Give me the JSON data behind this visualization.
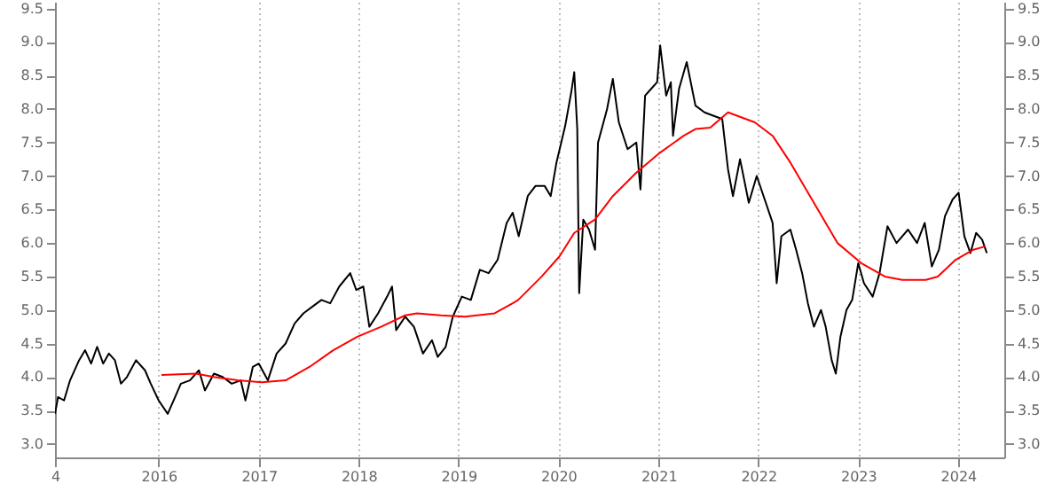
{
  "chart_data": {
    "type": "line",
    "grid": "x",
    "marker": "none",
    "line_style": "solid",
    "xlim": [
      "2014-12-18",
      "2024-06-18"
    ],
    "xticks": [
      {
        "value": "2014-12-18",
        "label": "4"
      },
      {
        "value": "2016-01-01",
        "label": "2016"
      },
      {
        "value": "2017-01-01",
        "label": "2017"
      },
      {
        "value": "2018-01-01",
        "label": "2018"
      },
      {
        "value": "2019-01-01",
        "label": "2019"
      },
      {
        "value": "2020-01-01",
        "label": "2020"
      },
      {
        "value": "2021-01-01",
        "label": "2021"
      },
      {
        "value": "2022-01-01",
        "label": "2022"
      },
      {
        "value": "2023-01-01",
        "label": "2023"
      },
      {
        "value": "2024-01-01",
        "label": "2024"
      }
    ],
    "ylim": [
      2.8,
      9.6
    ],
    "yticks": [
      {
        "value": 3,
        "label": "3.0"
      },
      {
        "value": 3.5,
        "label": "3.5"
      },
      {
        "value": 4,
        "label": "4.0"
      },
      {
        "value": 4.5,
        "label": "4.5"
      },
      {
        "value": 5,
        "label": "5.0"
      },
      {
        "value": 5.5,
        "label": "5.5"
      },
      {
        "value": 6,
        "label": "6.0"
      },
      {
        "value": 6.5,
        "label": "6.5"
      },
      {
        "value": 7,
        "label": "7.0"
      },
      {
        "value": 7.5,
        "label": "7.5"
      },
      {
        "value": 8,
        "label": "8.0"
      },
      {
        "value": 8.5,
        "label": "8.5"
      },
      {
        "value": 9,
        "label": "9.0"
      },
      {
        "value": 9.5,
        "label": "9.5"
      }
    ],
    "y2lim": [
      2.8,
      9.6
    ],
    "y2ticks": [
      {
        "value": 3,
        "label": "3.0"
      },
      {
        "value": 3.5,
        "label": "3.5"
      },
      {
        "value": 4,
        "label": "4.0"
      },
      {
        "value": 4.5,
        "label": "4.5"
      },
      {
        "value": 5,
        "label": "5.0"
      },
      {
        "value": 5.5,
        "label": "5.5"
      },
      {
        "value": 6,
        "label": "6.0"
      },
      {
        "value": 6.5,
        "label": "6.5"
      },
      {
        "value": 7,
        "label": "7.0"
      },
      {
        "value": 7.5,
        "label": "7.5"
      },
      {
        "value": 8,
        "label": "8.0"
      },
      {
        "value": 8.5,
        "label": "8.5"
      },
      {
        "value": 9,
        "label": "9.0"
      },
      {
        "value": 9.5,
        "label": "9.5"
      }
    ],
    "series": [
      {
        "color": "#000000",
        "x": [
          "2014-12-18",
          "2014-12-29",
          "2015-01-20",
          "2015-02-11",
          "2015-03-16",
          "2015-04-07",
          "2015-04-29",
          "2015-05-21",
          "2015-06-12",
          "2015-07-03",
          "2015-07-25",
          "2015-08-16",
          "2015-09-07",
          "2015-10-10",
          "2015-11-12",
          "2015-12-03",
          "2016-01-01",
          "2016-02-03",
          "2016-03-01",
          "2016-03-22",
          "2016-04-24",
          "2016-05-27",
          "2016-06-18",
          "2016-07-21",
          "2016-08-22",
          "2016-09-24",
          "2016-10-27",
          "2016-11-13",
          "2016-12-10",
          "2017-01-01",
          "2017-02-03",
          "2017-03-07",
          "2017-04-09",
          "2017-05-12",
          "2017-06-13",
          "2017-07-16",
          "2017-08-18",
          "2017-09-19",
          "2017-10-22",
          "2017-12-01",
          "2017-12-23",
          "2018-01-18",
          "2018-02-09",
          "2018-03-13",
          "2018-04-15",
          "2018-05-03",
          "2018-05-18",
          "2018-06-20",
          "2018-07-22",
          "2018-08-24",
          "2018-09-26",
          "2018-10-17",
          "2018-11-15",
          "2018-12-11",
          "2019-01-13",
          "2019-02-15",
          "2019-03-20",
          "2019-04-21",
          "2019-05-24",
          "2019-06-26",
          "2019-07-18",
          "2019-08-09",
          "2019-09-11",
          "2019-10-09",
          "2019-11-12",
          "2019-12-04",
          "2019-12-25",
          "2020-01-26",
          "2020-02-17",
          "2020-02-28",
          "2020-03-10",
          "2020-03-17",
          "2020-04-01",
          "2020-04-22",
          "2020-05-14",
          "2020-05-25",
          "2020-06-27",
          "2020-07-18",
          "2020-08-09",
          "2020-09-10",
          "2020-10-12",
          "2020-10-27",
          "2020-11-13",
          "2020-12-05",
          "2020-12-27",
          "2021-01-07",
          "2021-01-29",
          "2021-02-15",
          "2021-02-23",
          "2021-03-17",
          "2021-04-14",
          "2021-05-16",
          "2021-06-18",
          "2021-07-20",
          "2021-08-22",
          "2021-09-12",
          "2021-09-30",
          "2021-10-26",
          "2021-11-27",
          "2021-12-26",
          "2022-01-20",
          "2022-02-22",
          "2022-03-09",
          "2022-03-26",
          "2022-04-28",
          "2022-05-19",
          "2022-06-10",
          "2022-07-01",
          "2022-07-23",
          "2022-08-18",
          "2022-09-04",
          "2022-09-26",
          "2022-10-11",
          "2022-10-28",
          "2022-11-19",
          "2022-12-10",
          "2023-01-01",
          "2023-01-22",
          "2023-02-23",
          "2023-03-20",
          "2023-04-18",
          "2023-05-21",
          "2023-07-02",
          "2023-08-04",
          "2023-09-01",
          "2023-09-27",
          "2023-10-23",
          "2023-11-14",
          "2023-12-12",
          "2024-01-03",
          "2024-01-24",
          "2024-02-15",
          "2024-03-07",
          "2024-03-29",
          "2024-04-15"
        ],
        "values": [
          3.45,
          3.7,
          3.65,
          3.95,
          4.25,
          4.4,
          4.2,
          4.45,
          4.2,
          4.35,
          4.25,
          3.9,
          4.0,
          4.25,
          4.1,
          3.9,
          3.65,
          3.45,
          3.7,
          3.9,
          3.95,
          4.1,
          3.8,
          4.05,
          4.0,
          3.9,
          3.95,
          3.65,
          4.15,
          4.2,
          3.95,
          4.35,
          4.5,
          4.8,
          4.95,
          5.05,
          5.15,
          5.1,
          5.35,
          5.55,
          5.3,
          5.35,
          4.75,
          4.95,
          5.2,
          5.35,
          4.7,
          4.9,
          4.75,
          4.35,
          4.55,
          4.3,
          4.45,
          4.9,
          5.2,
          5.15,
          5.6,
          5.55,
          5.75,
          6.3,
          6.45,
          6.1,
          6.7,
          6.85,
          6.85,
          6.7,
          7.2,
          7.75,
          8.25,
          8.55,
          7.7,
          5.25,
          6.35,
          6.2,
          5.9,
          7.5,
          8.0,
          8.45,
          7.8,
          7.4,
          7.5,
          6.8,
          8.2,
          8.3,
          8.4,
          8.95,
          8.2,
          8.4,
          7.6,
          8.3,
          8.7,
          8.05,
          7.95,
          7.9,
          7.85,
          7.1,
          6.7,
          7.25,
          6.6,
          7.0,
          6.7,
          6.3,
          5.4,
          6.1,
          6.2,
          5.9,
          5.55,
          5.1,
          4.75,
          5.0,
          4.75,
          4.25,
          4.05,
          4.6,
          5.0,
          5.15,
          5.7,
          5.4,
          5.2,
          5.55,
          6.25,
          6.0,
          6.2,
          6.0,
          6.3,
          5.65,
          5.9,
          6.4,
          6.65,
          6.75,
          6.1,
          5.85,
          6.15,
          6.05,
          5.85
        ]
      },
      {
        "color": "#ff0000",
        "x": [
          "2016-01-11",
          "2016-05-16",
          "2016-07-21",
          "2016-10-16",
          "2017-01-12",
          "2017-04-09",
          "2017-07-05",
          "2017-09-30",
          "2017-12-27",
          "2018-03-24",
          "2018-06-20",
          "2018-08-02",
          "2018-10-29",
          "2019-01-24",
          "2019-05-13",
          "2019-07-18",
          "2019-08-07",
          "2019-11-01",
          "2020-01-05",
          "2020-02-28",
          "2020-05-14",
          "2020-07-18",
          "2020-10-12",
          "2021-01-07",
          "2021-04-03",
          "2021-05-16",
          "2021-07-09",
          "2021-09-12",
          "2021-12-19",
          "2022-02-22",
          "2022-04-28",
          "2022-07-23",
          "2022-10-17",
          "2023-01-12",
          "2023-04-08",
          "2023-06-11",
          "2023-09-05",
          "2023-10-19",
          "2023-12-23",
          "2024-02-26",
          "2024-04-10"
        ],
        "values": [
          4.03,
          4.05,
          4.0,
          3.95,
          3.92,
          3.95,
          4.15,
          4.4,
          4.6,
          4.75,
          4.92,
          4.95,
          4.92,
          4.9,
          4.95,
          5.1,
          5.15,
          5.5,
          5.8,
          6.15,
          6.35,
          6.7,
          7.05,
          7.35,
          7.6,
          7.7,
          7.72,
          7.95,
          7.8,
          7.6,
          7.2,
          6.6,
          6.0,
          5.7,
          5.5,
          5.45,
          5.45,
          5.5,
          5.75,
          5.9,
          5.95
        ]
      }
    ]
  }
}
